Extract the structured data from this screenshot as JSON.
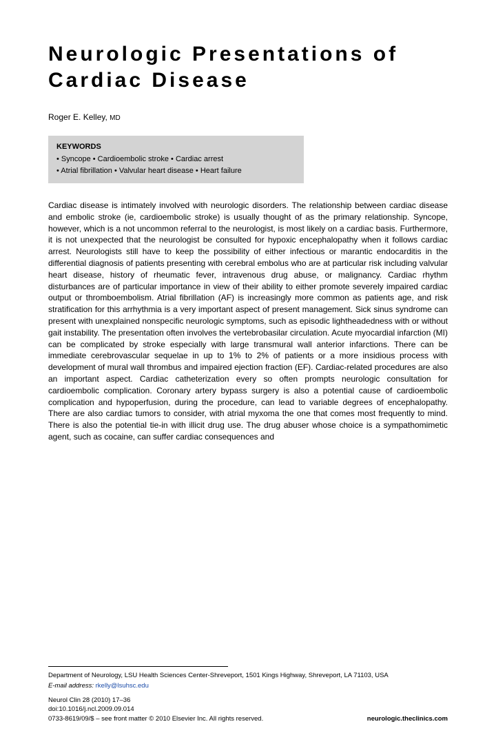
{
  "title": "Neurologic Presentations of Cardiac Disease",
  "author": {
    "name": "Roger E. Kelley,",
    "degree": "MD"
  },
  "keywords": {
    "heading": "KEYWORDS",
    "line1": "• Syncope • Cardioembolic stroke • Cardiac arrest",
    "line2": "• Atrial fibrillation • Valvular heart disease • Heart failure"
  },
  "body": "Cardiac disease is intimately involved with neurologic disorders. The relationship between cardiac disease and embolic stroke (ie, cardioembolic stroke) is usually thought of as the primary relationship. Syncope, however, which is a not uncommon referral to the neurologist, is most likely on a cardiac basis. Furthermore, it is not unexpected that the neurologist be consulted for hypoxic encephalopathy when it follows cardiac arrest. Neurologists still have to keep the possibility of either infectious or marantic endocarditis in the differential diagnosis of patients presenting with cerebral embolus who are at particular risk including valvular heart disease, history of rheumatic fever, intravenous drug abuse, or malignancy. Cardiac rhythm disturbances are of particular importance in view of their ability to either promote severely impaired cardiac output or thromboembolism. Atrial fibrillation (AF) is increasingly more common as patients age, and risk stratification for this arrhythmia is a very important aspect of present management. Sick sinus syndrome can present with unexplained nonspecific neurologic symptoms, such as episodic lightheadedness with or without gait instability. The presentation often involves the vertebrobasilar circulation. Acute myocardial infarction (MI) can be complicated by stroke especially with large transmural wall anterior infarctions. There can be immediate cerebrovascular sequelae in up to 1% to 2% of patients or a more insidious process with development of mural wall thrombus and impaired ejection fraction (EF). Cardiac-related procedures are also an important aspect. Cardiac catheterization every so often prompts neurologic consultation for cardioembolic complication. Coronary artery bypass surgery is also a potential cause of cardioembolic complication and hypoperfusion, during the procedure, can lead to variable degrees of encephalopathy. There are also cardiac tumors to consider, with atrial myxoma the one that comes most frequently to mind. There is also the potential tie-in with illicit drug use. The drug abuser whose choice is a sympathomimetic agent, such as cocaine, can suffer cardiac consequences and",
  "footer": {
    "affiliation": "Department of Neurology, LSU Health Sciences Center-Shreveport, 1501 Kings Highway, Shreveport, LA 71103, USA",
    "emailLabel": "E-mail address:",
    "email": "rkelly@lsuhsc.edu",
    "citation": "Neurol Clin 28 (2010) 17–36",
    "doi": "doi:10.1016/j.ncl.2009.09.014",
    "copyright": "0733-8619/09/$ – see front matter © 2010 Elsevier Inc. All rights reserved.",
    "site": "neurologic.theclinics.com"
  },
  "style": {
    "page_bg": "#ffffff",
    "text_color": "#000000",
    "keywords_bg": "#d3d3d3",
    "link_color": "#1a4ba8",
    "title_fontsize": 30,
    "title_letterspacing": 4,
    "body_fontsize": 12,
    "footer_fontsize": 9.5
  }
}
